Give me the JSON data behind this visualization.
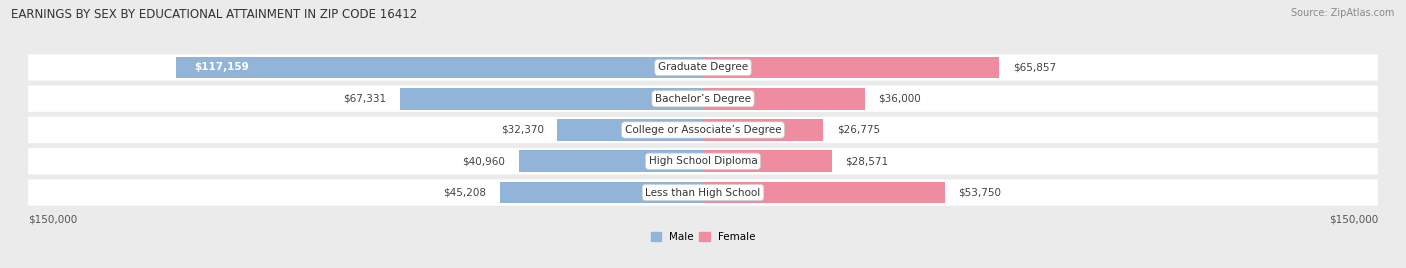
{
  "title": "EARNINGS BY SEX BY EDUCATIONAL ATTAINMENT IN ZIP CODE 16412",
  "source": "Source: ZipAtlas.com",
  "categories": [
    "Less than High School",
    "High School Diploma",
    "College or Associate’s Degree",
    "Bachelor’s Degree",
    "Graduate Degree"
  ],
  "male_values": [
    45208,
    40960,
    32370,
    67331,
    117159
  ],
  "female_values": [
    53750,
    28571,
    26775,
    36000,
    65857
  ],
  "male_color": "#92b4d8",
  "female_color": "#f08ca0",
  "max_value": 150000,
  "bg_color": "#ebebeb",
  "row_bg_color": "#ffffff",
  "axis_label_left": "$150,000",
  "axis_label_right": "$150,000",
  "legend_male": "Male",
  "legend_female": "Female",
  "title_fontsize": 8.5,
  "source_fontsize": 7.0,
  "label_fontsize": 7.5,
  "bar_height": 0.7
}
